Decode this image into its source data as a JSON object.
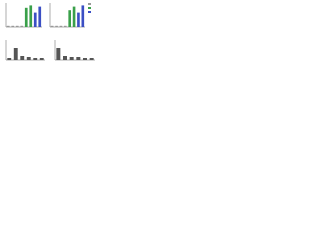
{
  "chart_data": [
    {
      "type": "bar",
      "values": [
        5,
        5,
        5,
        5,
        80,
        90,
        60,
        85
      ],
      "colors": [
        "#999999",
        "#999999",
        "#999999",
        "#999999",
        "#3aa04a",
        "#3aa04a",
        "#3b4fc4",
        "#3b4fc4"
      ],
      "ylim": [
        0,
        100
      ]
    },
    {
      "type": "bar",
      "values": [
        5,
        5,
        5,
        5,
        70,
        85,
        60,
        90
      ],
      "colors": [
        "#999999",
        "#999999",
        "#999999",
        "#999999",
        "#3aa04a",
        "#3aa04a",
        "#3b4fc4",
        "#3b4fc4"
      ],
      "ylim": [
        0,
        100
      ]
    },
    {
      "type": "bar",
      "values": [
        10,
        60,
        20,
        15,
        10,
        10
      ],
      "colors": [
        "#555555",
        "#555555",
        "#555555",
        "#555555",
        "#555555",
        "#555555"
      ],
      "ylim": [
        0,
        100
      ]
    },
    {
      "type": "bar",
      "values": [
        60,
        20,
        15,
        15,
        10,
        10
      ],
      "colors": [
        "#555555",
        "#555555",
        "#555555",
        "#555555",
        "#555555",
        "#555555"
      ],
      "ylim": [
        0,
        100
      ]
    }
  ]
}
